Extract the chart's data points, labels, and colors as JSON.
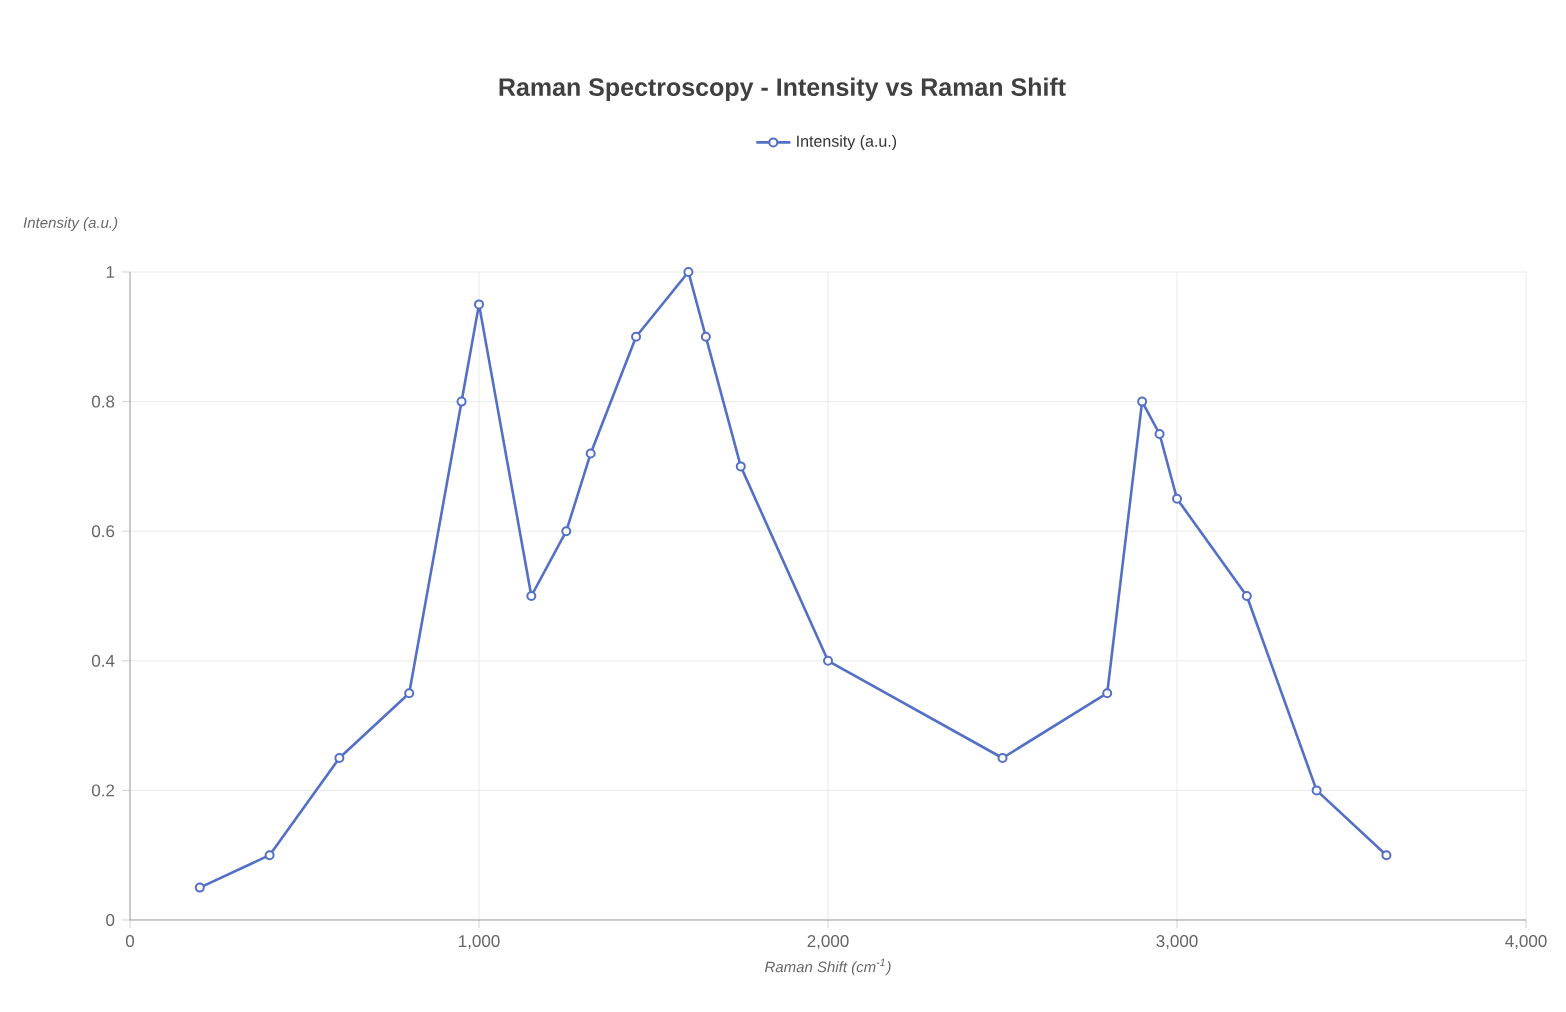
{
  "chart_data": {
    "type": "line",
    "title": "Raman Spectroscopy - Intensity vs Raman Shift",
    "xlabel": "Raman Shift (cm$^{-1}$)",
    "ylabel": "Intensity (a.u.)",
    "x": [
      200,
      400,
      600,
      800,
      950,
      1000,
      1150,
      1250,
      1320,
      1450,
      1600,
      1650,
      1750,
      2000,
      2500,
      2800,
      2900,
      2950,
      3000,
      3200,
      3400,
      3600
    ],
    "series": [
      {
        "name": "Intensity (a.u.)",
        "color": "#5470c6",
        "values": [
          0.05,
          0.1,
          0.25,
          0.35,
          0.8,
          0.95,
          0.5,
          0.6,
          0.72,
          0.9,
          1.0,
          0.9,
          0.7,
          0.4,
          0.25,
          0.35,
          0.8,
          0.75,
          0.65,
          0.5,
          0.2,
          0.1
        ]
      }
    ],
    "xlim": [
      0,
      4000
    ],
    "xticks": [
      0,
      {
        "value": 1000,
        "label": "1,000"
      },
      {
        "value": 2000,
        "label": "2,000"
      },
      {
        "value": 3000,
        "label": "3,000"
      },
      {
        "value": 4000,
        "label": "4,000"
      }
    ],
    "ylim": [
      0,
      1
    ],
    "yticks": [
      0,
      0.2,
      0.4,
      0.6,
      0.8,
      1
    ],
    "grid": true,
    "legend": "top",
    "marker": "circle",
    "line_style": "solid"
  }
}
